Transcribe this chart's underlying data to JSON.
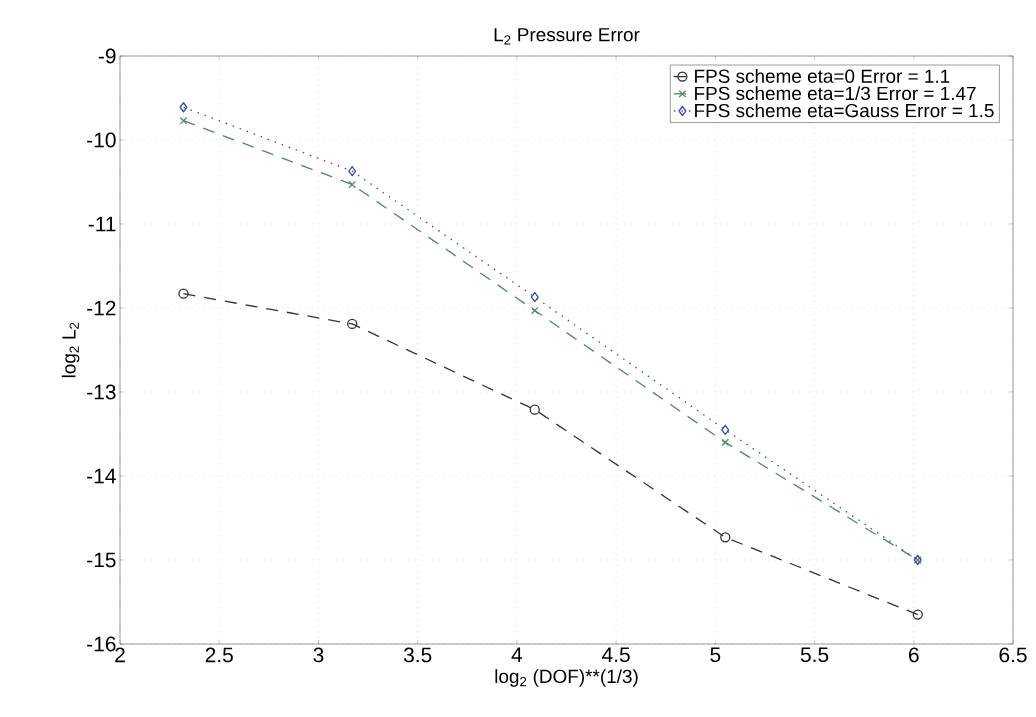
{
  "chart_data": {
    "type": "line",
    "title": "L$_{2}$ Pressure Error",
    "xlabel": "log$_{2}$ (DOF)**(1/3)",
    "ylabel": "log$_{2}$ L$_{2}$",
    "x": [
      2.32,
      3.17,
      4.09,
      5.05,
      6.02
    ],
    "series": [
      {
        "name": "FPS scheme eta=0 Error = 1.1",
        "color": "#333333",
        "marker": "circle",
        "line_style": "dashed",
        "values": [
          -11.83,
          -12.19,
          -13.21,
          -14.73,
          -15.65
        ]
      },
      {
        "name": "FPS scheme eta=1/3 Error = 1.47",
        "color": "#4f8a5f",
        "marker": "cross",
        "line_style": "dashed",
        "values": [
          -9.77,
          -10.53,
          -12.03,
          -13.6,
          -15.0
        ]
      },
      {
        "name": "FPS scheme eta=Gauss Error = 1.5",
        "color": "#3a4fa0",
        "marker": "diamond",
        "line_style": "dotted",
        "values": [
          -9.61,
          -10.37,
          -11.87,
          -13.45,
          -15.0
        ]
      }
    ],
    "xlim": [
      2,
      6.5
    ],
    "ylim": [
      -16,
      -9
    ],
    "xticks": [
      2,
      2.5,
      3,
      3.5,
      4,
      4.5,
      5,
      5.5,
      6,
      6.5
    ],
    "yticks": [
      -16,
      -15,
      -14,
      -13,
      -12,
      -11,
      -10,
      -9
    ],
    "grid": true,
    "legend": "top right"
  }
}
